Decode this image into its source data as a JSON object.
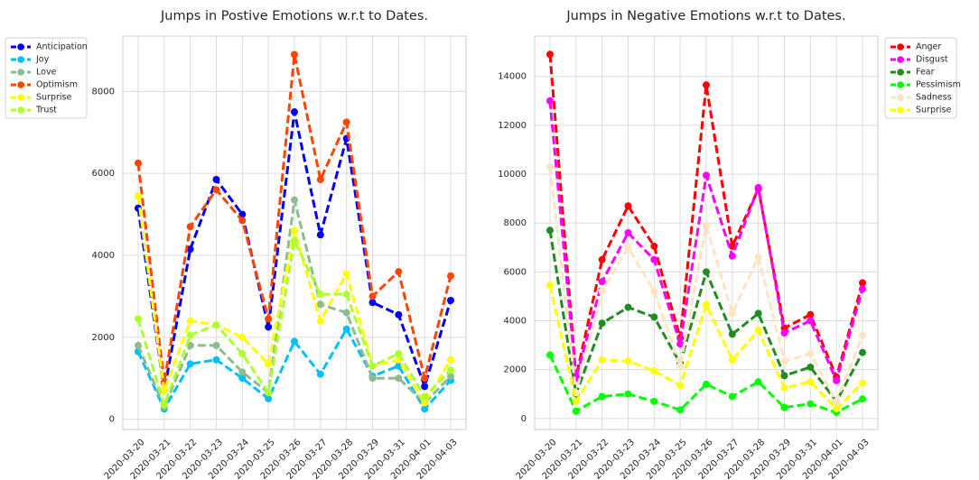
{
  "chart_data": [
    {
      "type": "line",
      "title": "Jumps in Postive Emotions w.r.t to Dates.",
      "xlabel": "",
      "ylabel": "",
      "categories": [
        "2020-03-20",
        "2020-03-21",
        "2020-03-22",
        "2020-03-23",
        "2020-03-24",
        "2020-03-25",
        "2020-03-26",
        "2020-03-27",
        "2020-03-28",
        "2020-03-29",
        "2020-03-31",
        "2020-04-01",
        "2020-04-03"
      ],
      "ylim": [
        -250,
        9350
      ],
      "yticks": [
        0,
        2000,
        4000,
        6000,
        8000
      ],
      "grid": true,
      "legend_position": "outside-upper-left",
      "series": [
        {
          "name": "Anticipation",
          "color": "#0000ff",
          "values": [
            5150,
            700,
            4150,
            5850,
            5000,
            2250,
            7500,
            4500,
            6850,
            2850,
            2550,
            800,
            2900
          ]
        },
        {
          "name": "Joy",
          "color": "#00bfff",
          "values": [
            1650,
            250,
            1350,
            1450,
            1000,
            500,
            1900,
            1100,
            2200,
            1050,
            1300,
            250,
            950
          ]
        },
        {
          "name": "Love",
          "color": "#8fbc8f",
          "values": [
            1800,
            300,
            1800,
            1800,
            1150,
            650,
            5350,
            2800,
            2600,
            1000,
            1000,
            400,
            1050
          ]
        },
        {
          "name": "Optimism",
          "color": "#ff4500",
          "values": [
            6250,
            900,
            4700,
            5600,
            4850,
            2450,
            8900,
            5850,
            7250,
            3000,
            3600,
            1000,
            3500
          ]
        },
        {
          "name": "Surprise",
          "color": "#ffff00",
          "values": [
            5450,
            700,
            2400,
            2300,
            2000,
            1350,
            4600,
            2400,
            3550,
            1300,
            1450,
            400,
            1450
          ]
        },
        {
          "name": "Trust",
          "color": "#adff2f",
          "values": [
            2450,
            350,
            2050,
            2300,
            1600,
            650,
            4350,
            3050,
            3050,
            1300,
            1600,
            550,
            1200
          ]
        }
      ]
    },
    {
      "type": "line",
      "title": "Jumps in Negative Emotions w.r.t to Dates.",
      "xlabel": "",
      "ylabel": "",
      "categories": [
        "2020-03-20",
        "2020-03-21",
        "2020-03-22",
        "2020-03-23",
        "2020-03-24",
        "2020-03-25",
        "2020-03-26",
        "2020-03-27",
        "2020-03-28",
        "2020-03-29",
        "2020-03-31",
        "2020-04-01",
        "2020-04-03"
      ],
      "ylim": [
        -450,
        15650
      ],
      "yticks": [
        0,
        2000,
        4000,
        6000,
        8000,
        10000,
        12000,
        14000
      ],
      "grid": true,
      "legend_position": "outside-upper-right",
      "series": [
        {
          "name": "Anger",
          "color": "#ff0000",
          "values": [
            14900,
            1700,
            6500,
            8700,
            7050,
            3300,
            13650,
            7050,
            9400,
            3700,
            4250,
            1700,
            5550
          ]
        },
        {
          "name": "Disgust",
          "color": "#ff00ff",
          "values": [
            13000,
            1650,
            5600,
            7600,
            6500,
            3050,
            9950,
            6650,
            9450,
            3500,
            4000,
            1550,
            5300
          ]
        },
        {
          "name": "Fear",
          "color": "#228b22",
          "values": [
            7700,
            1000,
            3900,
            4550,
            4150,
            2250,
            6000,
            3450,
            4300,
            1750,
            2100,
            700,
            2700
          ]
        },
        {
          "name": "Pessimism",
          "color": "#00ff00",
          "values": [
            2600,
            300,
            900,
            1000,
            700,
            350,
            1400,
            900,
            1500,
            450,
            600,
            250,
            800
          ]
        },
        {
          "name": "Sadness",
          "color": "#ffe4c4",
          "values": [
            10300,
            1050,
            5200,
            7000,
            5200,
            2150,
            7900,
            4300,
            6600,
            2350,
            2650,
            700,
            3400
          ]
        },
        {
          "name": "Surprise",
          "color": "#ffff00",
          "values": [
            5450,
            700,
            2400,
            2350,
            1950,
            1350,
            4650,
            2400,
            3600,
            1250,
            1500,
            400,
            1450
          ]
        }
      ]
    }
  ]
}
